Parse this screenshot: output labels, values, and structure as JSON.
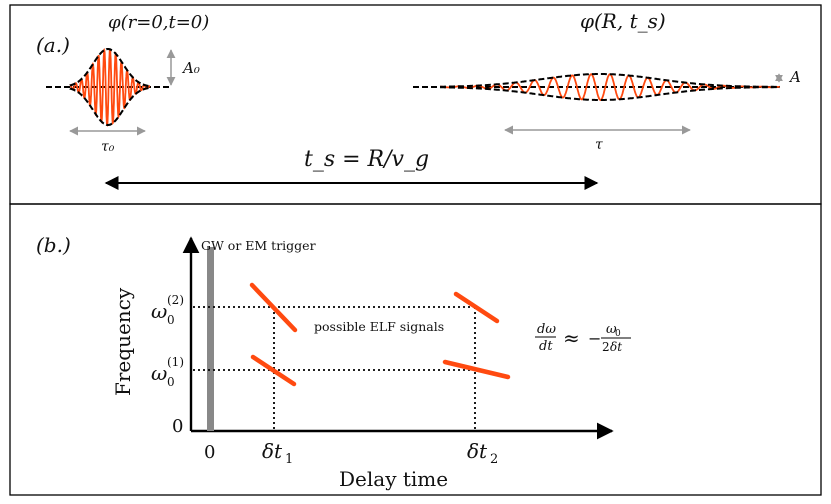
{
  "panel_a": {
    "label": "(a.)",
    "pulse_initial_label": "φ(r=0,t=0)",
    "pulse_final_label": "φ(R, t_s)",
    "amplitude_initial_label": "A₀",
    "amplitude_final_label": "A",
    "width_initial_label": "τ₀",
    "width_final_label": "τ",
    "travel_time_label": "t_s = R/v_g"
  },
  "panel_b": {
    "label": "(b.)",
    "trigger_label": "GW or EM trigger",
    "signals_label": "possible ELF signals",
    "y_axis_label": "Frequency",
    "x_axis_label": "Delay time",
    "y_tick_zero": "0",
    "x_tick_zero": "0",
    "omega2_label": "ω0(2)",
    "omega1_label": "ω0(1)",
    "dt1_label": "δt1",
    "dt2_label": "δt2",
    "chirp_formula_lhs": "dω/dt",
    "chirp_formula_rel": "≈",
    "chirp_formula_rhs": "− ω0 / 2δt"
  },
  "colors": {
    "signal": "#ff4a10",
    "envelope": "#000000",
    "trigger": "#888888",
    "dim_arrow": "#999999"
  }
}
